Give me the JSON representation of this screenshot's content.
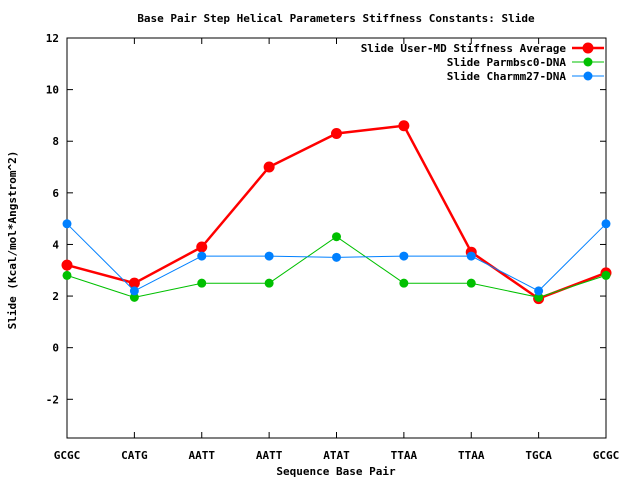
{
  "chart_data": {
    "type": "line",
    "title": "Base Pair Step Helical Parameters Stiffness Constants: Slide",
    "xlabel": "Sequence Base Pair",
    "ylabel": "Slide (Kcal/mol*Angstrom^2)",
    "categories": [
      "GCGC",
      "CATG",
      "AATT",
      "AATT",
      "ATAT",
      "TTAA",
      "TTAA",
      "TGCA",
      "GCGC"
    ],
    "ylim": [
      -3.5,
      12
    ],
    "yticks": [
      -2,
      0,
      2,
      4,
      6,
      8,
      10,
      12
    ],
    "grid": false,
    "legend_position": "top-right",
    "series": [
      {
        "name": "Slide User-MD Stiffness Average",
        "color": "#ff0000",
        "values": [
          3.2,
          2.5,
          3.9,
          7.0,
          8.3,
          8.6,
          3.7,
          1.9,
          2.9
        ]
      },
      {
        "name": "Slide Parmbsc0-DNA",
        "color": "#00c000",
        "values": [
          2.8,
          1.95,
          2.5,
          2.5,
          4.3,
          2.5,
          2.5,
          1.95,
          2.8
        ]
      },
      {
        "name": "Slide Charmm27-DNA",
        "color": "#0080ff",
        "values": [
          4.8,
          2.2,
          3.55,
          3.55,
          3.5,
          3.55,
          3.55,
          2.2,
          4.8
        ]
      }
    ]
  }
}
